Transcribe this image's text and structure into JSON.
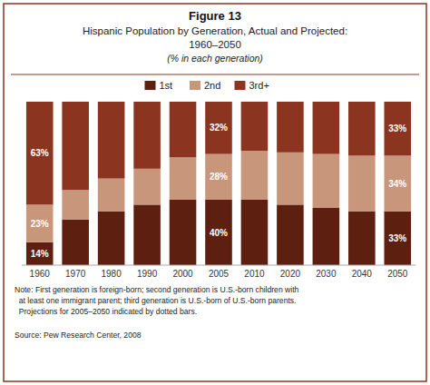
{
  "chart_data": {
    "type": "bar",
    "stacked": true,
    "title": "Figure 13",
    "subtitle": [
      "Hispanic Population by Generation, Actual and Projected:",
      "1960–2050",
      "(% in each generation)"
    ],
    "categories": [
      "1960",
      "1970",
      "1980",
      "1990",
      "2000",
      "2005",
      "2010",
      "2020",
      "2030",
      "2040",
      "2050"
    ],
    "series": [
      {
        "name": "1st",
        "color": "#5c1f10",
        "values": [
          14,
          28,
          33,
          37,
          40,
          40,
          40,
          37,
          35,
          33,
          33
        ],
        "value_labels": [
          "14%",
          null,
          null,
          null,
          null,
          "40%",
          null,
          null,
          null,
          null,
          "33%"
        ]
      },
      {
        "name": "2nd",
        "color": "#c8967a",
        "values": [
          23,
          18,
          20,
          22,
          26,
          28,
          30,
          32,
          33,
          34,
          34
        ],
        "value_labels": [
          "23%",
          null,
          null,
          null,
          null,
          "28%",
          null,
          null,
          null,
          null,
          "34%"
        ]
      },
      {
        "name": "3rd+",
        "color": "#8b3520",
        "values": [
          63,
          54,
          47,
          41,
          34,
          32,
          30,
          31,
          32,
          33,
          33
        ],
        "value_labels": [
          "63%",
          null,
          null,
          null,
          null,
          "32%",
          null,
          null,
          null,
          null,
          "33%"
        ]
      }
    ],
    "ylim": [
      0,
      100
    ],
    "data_labels": true,
    "tick_labels": "x",
    "grid": false,
    "legend": "top",
    "annotations": [
      "Note: First generation is foreign-born; second generation is U.S.-born children with\n  at least one immigrant parent; third generation is U.S.-born of U.S.-born parents.\n  Projections for 2005–2050 indicated by dotted bars.",
      "Source: Pew Research Center, 2008"
    ]
  }
}
